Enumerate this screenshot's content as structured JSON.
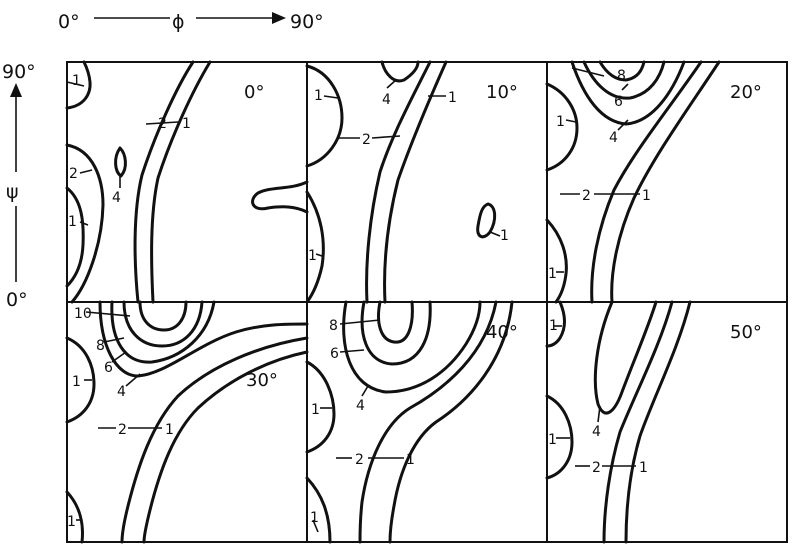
{
  "axes": {
    "phi_start": "0°",
    "phi_symbol": "ϕ",
    "phi_end": "90°",
    "psi_top": "90°",
    "psi_symbol": "ψ",
    "psi_bottom": "0°"
  },
  "panels": [
    {
      "angle": "0°",
      "labels": [
        "1",
        "2",
        "1",
        "2",
        "4",
        "1"
      ]
    },
    {
      "angle": "10°",
      "labels": [
        "1",
        "4",
        "1",
        "2",
        "1",
        "1"
      ]
    },
    {
      "angle": "20°",
      "labels": [
        "8",
        "6",
        "4",
        "1",
        "2",
        "1",
        "1"
      ]
    },
    {
      "angle": "30°",
      "labels": [
        "10",
        "8",
        "6",
        "4",
        "1",
        "2",
        "1",
        "1"
      ]
    },
    {
      "angle": "40°",
      "labels": [
        "8",
        "6",
        "4",
        "1",
        "2",
        "1",
        "1"
      ]
    },
    {
      "angle": "50°",
      "labels": [
        "1",
        "4",
        "1",
        "2",
        "1"
      ]
    }
  ]
}
